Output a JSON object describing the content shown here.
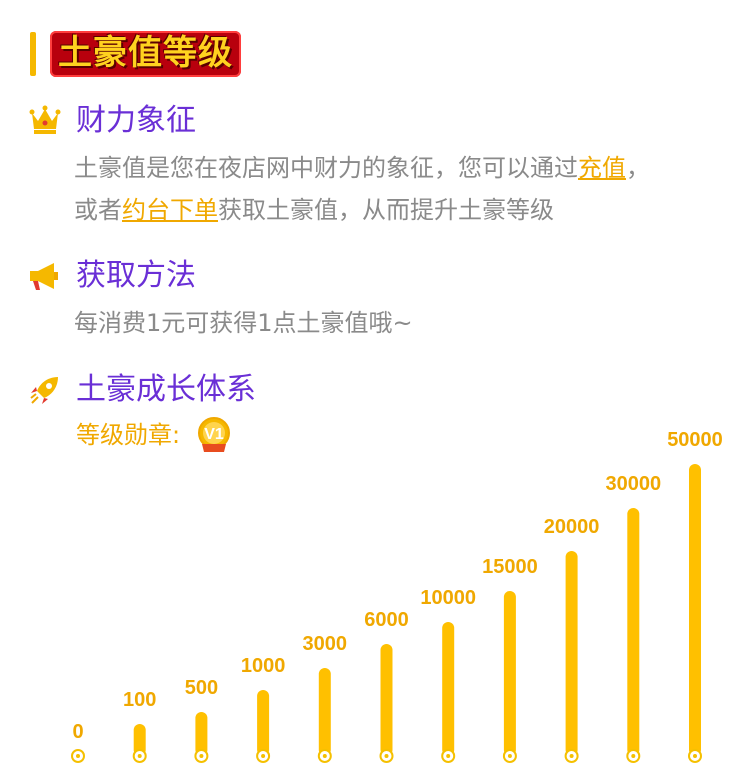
{
  "header": {
    "title": "土豪值等级"
  },
  "section1": {
    "title": "财力象征",
    "icon": "crown-icon",
    "line1_pre": "土豪值是您在夜店网中财力的象征，您可以通过",
    "link1": "充值",
    "line1_post": "，",
    "line2_pre": "或者",
    "link2": "约台下单",
    "line2_post": "获取土豪值，从而提升土豪等级"
  },
  "section2": {
    "title": "获取方法",
    "icon": "megaphone-icon",
    "text": "每消费1元可获得1点土豪值哦~"
  },
  "section3": {
    "title": "土豪成长体系",
    "icon": "rocket-icon",
    "medal_label": "等级勋章:",
    "medal_icon": "v1-medal-icon"
  },
  "colors": {
    "accent": "#6a2fd6",
    "gold": "#f0a800",
    "bar": "#ffc000",
    "text": "#8a8a8a"
  },
  "chart_data": {
    "type": "bar",
    "categories": [
      "0",
      "100",
      "500",
      "1000",
      "3000",
      "6000",
      "10000",
      "15000",
      "20000",
      "30000",
      "50000"
    ],
    "values": [
      0,
      100,
      500,
      1000,
      3000,
      6000,
      10000,
      15000,
      20000,
      30000,
      50000
    ],
    "labels": [
      "0",
      "100",
      "500",
      "1000",
      "3000",
      "6000",
      "10000",
      "15000",
      "20000",
      "30000",
      "50000"
    ]
  }
}
